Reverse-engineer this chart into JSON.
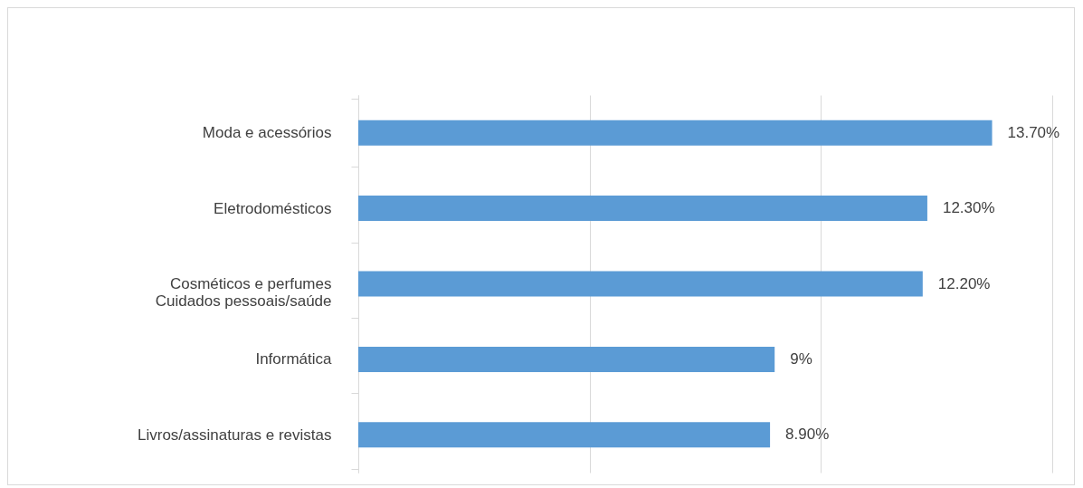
{
  "chart_data": {
    "type": "bar",
    "orientation": "horizontal",
    "categories": [
      "Moda e acessórios",
      "Eletrodomésticos",
      "Cosméticos e perfumes\nCuidados pessoais/saúde",
      "Informática",
      "Livros/assinaturas e revistas"
    ],
    "values": [
      13.7,
      12.3,
      12.2,
      9,
      8.9
    ],
    "value_labels": [
      "13.70%",
      "12.30%",
      "12.20%",
      "9%",
      "8.90%"
    ],
    "color": "#5b9bd5",
    "xlim": [
      0,
      15
    ],
    "xticks": [
      {
        "value": 0,
        "label": null
      },
      {
        "value": 5,
        "label": null
      },
      {
        "value": 10,
        "label": null
      },
      {
        "value": 15,
        "label": null
      }
    ],
    "tick_labels": "y",
    "grid": "x"
  }
}
